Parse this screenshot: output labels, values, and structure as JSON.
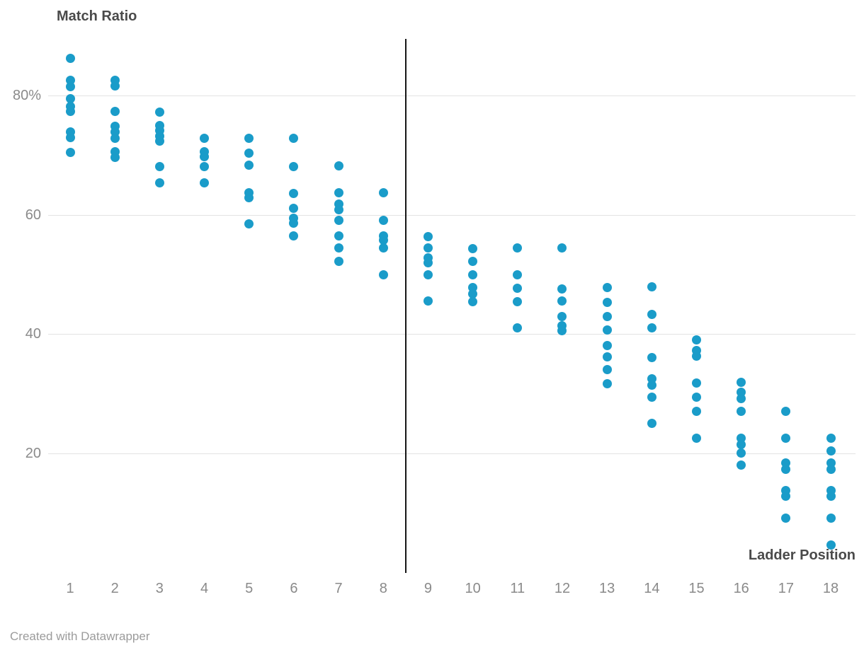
{
  "title": "Match Ratio",
  "x_axis_title": "Ladder Position",
  "footer_text": "Created with Datawrapper",
  "colors": {
    "dot": "#1a9cc9",
    "grid": "#e3e3e3",
    "divider": "#161616",
    "tick_label": "#8a8a8a",
    "axis_title": "#4a4a4a",
    "footer": "#9b9b9b",
    "background": "#ffffff"
  },
  "chart_data": {
    "type": "scatter",
    "title": "Match Ratio",
    "xlabel": "Ladder Position",
    "ylabel": "Match Ratio (%)",
    "grid": "horizontal-only",
    "legend": "none",
    "xlim": [
      0.5,
      18.55
    ],
    "ylim": [
      0,
      89.6
    ],
    "x_ticks": [
      1,
      2,
      3,
      4,
      5,
      6,
      7,
      8,
      9,
      10,
      11,
      12,
      13,
      14,
      15,
      16,
      17,
      18
    ],
    "y_ticks": [
      {
        "value": 80,
        "label": "80%"
      },
      {
        "value": 60,
        "label": "60"
      },
      {
        "value": 40,
        "label": "40"
      },
      {
        "value": 20,
        "label": "20"
      }
    ],
    "divider_x": 8.5,
    "points": [
      {
        "x": 1,
        "match_ratios": [
          86.2,
          82.5,
          81.5,
          79.5,
          78.2,
          77.3,
          73.9,
          72.9,
          70.4
        ]
      },
      {
        "x": 2,
        "match_ratios": [
          82.6,
          81.6,
          77.3,
          74.9,
          73.9,
          72.8,
          70.6,
          69.6
        ]
      },
      {
        "x": 3,
        "match_ratios": [
          77.2,
          75.0,
          74.1,
          73.2,
          72.4,
          68.1,
          65.4
        ]
      },
      {
        "x": 4,
        "match_ratios": [
          72.8,
          70.6,
          69.8,
          68.1,
          65.3
        ]
      },
      {
        "x": 5,
        "match_ratios": [
          72.8,
          70.3,
          68.3,
          63.7,
          62.9,
          58.5
        ]
      },
      {
        "x": 6,
        "match_ratios": [
          72.8,
          68.1,
          63.6,
          61.1,
          59.4,
          58.6,
          56.5
        ]
      },
      {
        "x": 7,
        "match_ratios": [
          68.2,
          63.7,
          61.8,
          60.9,
          59.1,
          56.5,
          54.5,
          52.2
        ]
      },
      {
        "x": 8,
        "match_ratios": [
          63.7,
          59.1,
          56.5,
          55.7,
          54.5,
          50.0
        ]
      },
      {
        "x": 9,
        "match_ratios": [
          56.4,
          54.5,
          52.8,
          52.0,
          50.0,
          45.5
        ]
      },
      {
        "x": 10,
        "match_ratios": [
          54.3,
          52.2,
          50.0,
          47.8,
          46.7,
          45.4
        ]
      },
      {
        "x": 11,
        "match_ratios": [
          54.5,
          49.9,
          47.7,
          45.4,
          41.0
        ]
      },
      {
        "x": 12,
        "match_ratios": [
          54.5,
          47.6,
          45.5,
          43.0,
          41.4,
          40.6
        ]
      },
      {
        "x": 13,
        "match_ratios": [
          47.8,
          45.3,
          43.0,
          40.7,
          38.1,
          36.2,
          34.0,
          31.7
        ]
      },
      {
        "x": 14,
        "match_ratios": [
          47.9,
          43.3,
          41.0,
          36.1,
          32.5,
          31.5,
          29.4,
          25.0
        ]
      },
      {
        "x": 15,
        "match_ratios": [
          39.0,
          37.2,
          36.3,
          31.8,
          29.4,
          27.0,
          22.5
        ]
      },
      {
        "x": 16,
        "match_ratios": [
          31.9,
          30.3,
          29.2,
          27.0,
          22.5,
          21.5,
          20.1,
          18.0
        ]
      },
      {
        "x": 17,
        "match_ratios": [
          27.1,
          22.5,
          18.4,
          17.3,
          13.8,
          12.8,
          9.1
        ]
      },
      {
        "x": 18,
        "match_ratios": [
          22.5,
          20.4,
          18.4,
          17.3,
          13.8,
          12.8,
          9.1,
          4.7
        ]
      }
    ]
  }
}
